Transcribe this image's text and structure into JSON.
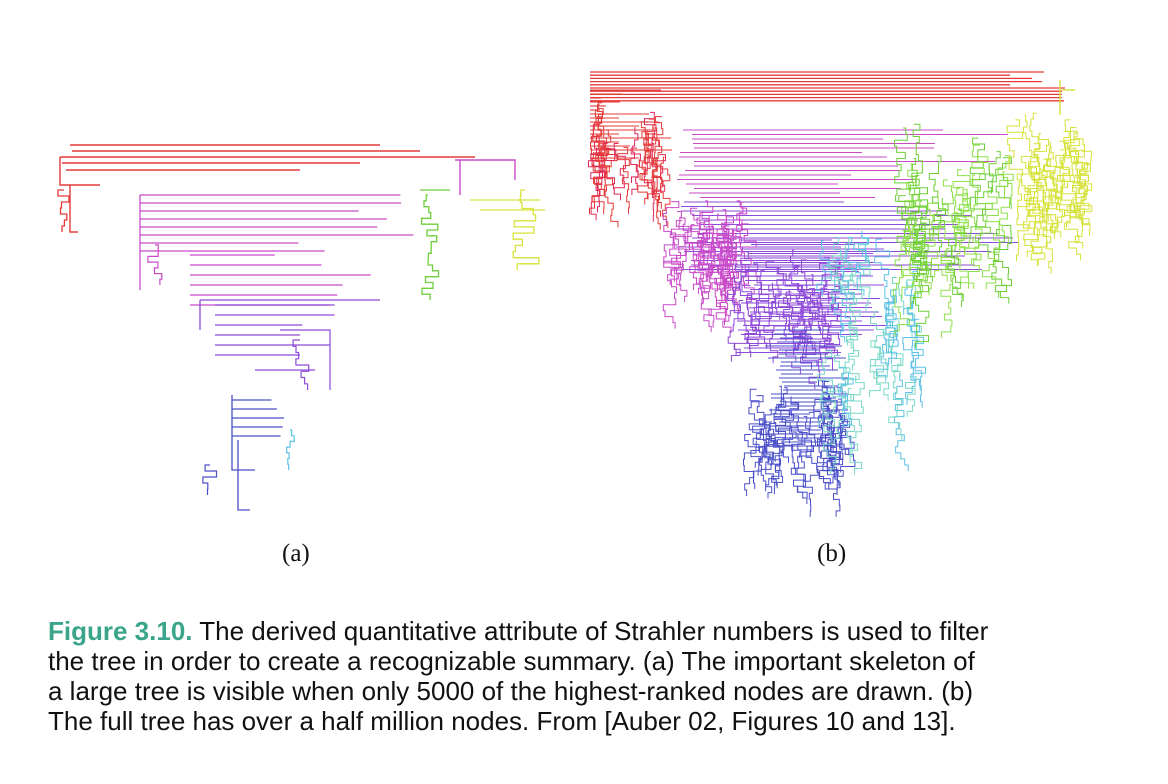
{
  "figure": {
    "subfigures": [
      {
        "label": "(a)",
        "description": "pruned tree skeleton"
      },
      {
        "label": "(b)",
        "description": "full tree"
      }
    ],
    "caption": {
      "figure_number": "Figure 3.10.",
      "lines": [
        "The derived quantitative attribute of Strahler numbers is used to filter",
        "the tree in order to create a recognizable summary. (a) The important skeleton of",
        "a large tree is visible when only 5000 of the highest-ranked nodes are drawn. (b)",
        "The full tree has over a half million nodes. From [Auber 02, Figures 10 and 13]."
      ]
    },
    "colors": {
      "red": "#e53a3a",
      "magenta": "#c94ac9",
      "purple": "#8e4ad8",
      "blue": "#4a4fc9",
      "cyan": "#5fc2e6",
      "green": "#6fcf3a",
      "yellow": "#d6e23a",
      "caption_accent": "#3aa58a"
    }
  }
}
